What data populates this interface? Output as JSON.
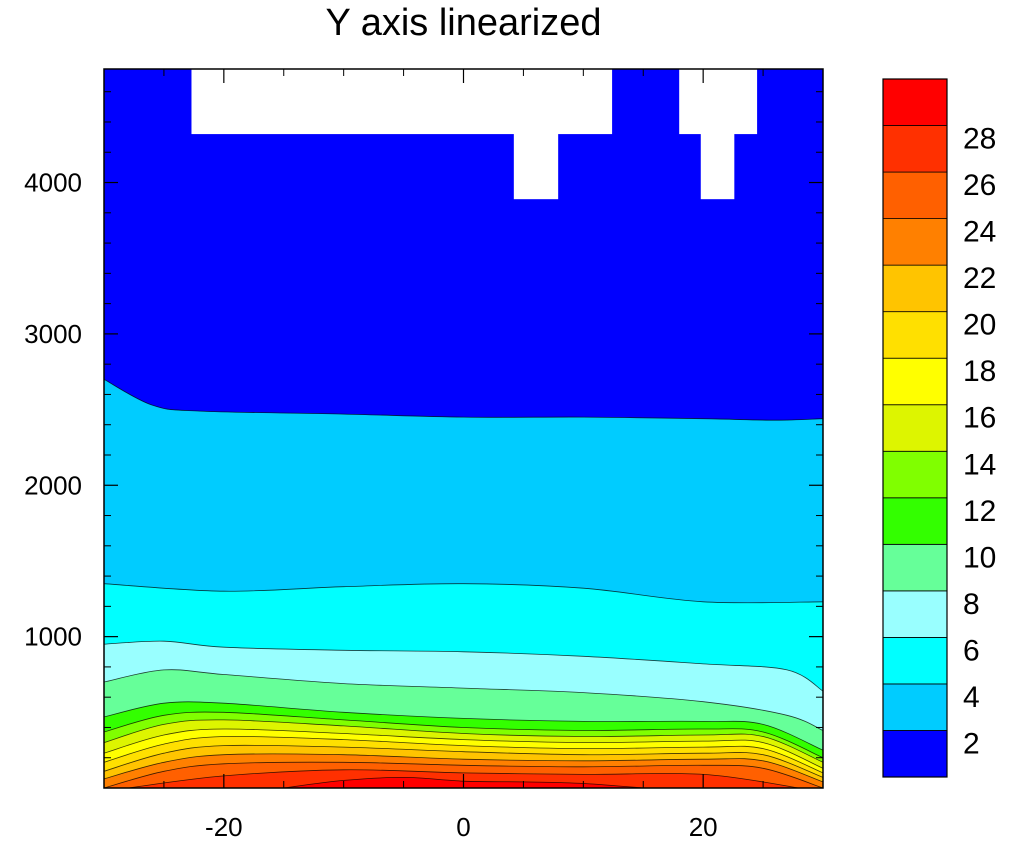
{
  "chart_data": {
    "type": "heatmap",
    "title": "Y axis linearized",
    "xlabel": "",
    "ylabel": "",
    "xlim": [
      -30,
      30
    ],
    "ylim": [
      0,
      4750
    ],
    "x_ticks": [
      -20,
      0,
      20
    ],
    "x_tick_labels": [
      "-20",
      "0",
      "20"
    ],
    "y_ticks": [
      1000,
      2000,
      3000,
      4000
    ],
    "y_tick_labels": [
      "1000",
      "2000",
      "3000",
      "4000"
    ],
    "missing_color": "#ffffff",
    "colorbar": {
      "position": "right",
      "levels": [
        2,
        4,
        6,
        8,
        10,
        12,
        14,
        16,
        18,
        20,
        22,
        24,
        26,
        28
      ],
      "labels": [
        "2",
        "4",
        "6",
        "8",
        "10",
        "12",
        "14",
        "16",
        "18",
        "20",
        "22",
        "24",
        "26",
        "28"
      ],
      "colors": [
        "#0000ff",
        "#00ccff",
        "#00ffff",
        "#99ffff",
        "#66ff99",
        "#33ff00",
        "#80ff00",
        "#ddf500",
        "#ffff00",
        "#ffe000",
        "#ffc400",
        "#ff8000",
        "#ff6000",
        "#ff3000",
        "#ff0000"
      ]
    },
    "contours": [
      {
        "level": 2,
        "x": [
          -30,
          -26,
          -22,
          -10,
          0,
          10,
          20,
          26,
          30
        ],
        "y": [
          2700,
          2530,
          2490,
          2470,
          2450,
          2450,
          2440,
          2430,
          2440
        ]
      },
      {
        "level": 4,
        "x": [
          -30,
          -20,
          -10,
          0,
          10,
          20,
          30
        ],
        "y": [
          1350,
          1300,
          1330,
          1350,
          1320,
          1230,
          1230
        ]
      },
      {
        "level": 6,
        "x": [
          -30,
          -25,
          -20,
          -10,
          0,
          10,
          20,
          27,
          30
        ],
        "y": [
          950,
          970,
          930,
          910,
          900,
          870,
          820,
          780,
          640
        ]
      },
      {
        "level": 8,
        "x": [
          -30,
          -25,
          -20,
          -10,
          0,
          10,
          20,
          27,
          30
        ],
        "y": [
          700,
          780,
          750,
          690,
          660,
          630,
          570,
          480,
          380
        ]
      },
      {
        "level": 10,
        "x": [
          -30,
          -25,
          -20,
          -10,
          0,
          10,
          20,
          25,
          30
        ],
        "y": [
          470,
          560,
          560,
          500,
          460,
          440,
          440,
          420,
          250
        ]
      },
      {
        "level": 12,
        "x": [
          -30,
          -25,
          -20,
          -10,
          0,
          10,
          20,
          25,
          30
        ],
        "y": [
          370,
          480,
          500,
          450,
          400,
          380,
          390,
          370,
          200
        ]
      },
      {
        "level": 14,
        "x": [
          -30,
          -25,
          -20,
          -10,
          0,
          10,
          20,
          25,
          30
        ],
        "y": [
          300,
          420,
          450,
          410,
          360,
          340,
          350,
          340,
          170
        ]
      },
      {
        "level": 16,
        "x": [
          -30,
          -25,
          -20,
          -10,
          0,
          10,
          20,
          25,
          30
        ],
        "y": [
          230,
          350,
          390,
          360,
          320,
          300,
          310,
          300,
          130
        ]
      },
      {
        "level": 18,
        "x": [
          -30,
          -25,
          -20,
          -10,
          0,
          10,
          20,
          25,
          30
        ],
        "y": [
          170,
          290,
          340,
          320,
          280,
          260,
          270,
          260,
          100
        ]
      },
      {
        "level": 20,
        "x": [
          -30,
          -25,
          -20,
          -10,
          0,
          10,
          20,
          25,
          30
        ],
        "y": [
          110,
          230,
          280,
          270,
          240,
          220,
          230,
          220,
          70
        ]
      },
      {
        "level": 22,
        "x": [
          -30,
          -25,
          -20,
          -10,
          0,
          10,
          20,
          25,
          30
        ],
        "y": [
          60,
          170,
          220,
          220,
          190,
          180,
          190,
          180,
          40
        ]
      },
      {
        "level": 24,
        "x": [
          -30,
          -25,
          -20,
          -10,
          0,
          10,
          20,
          25,
          30
        ],
        "y": [
          0,
          110,
          160,
          170,
          150,
          140,
          150,
          130,
          0
        ]
      },
      {
        "level": 26,
        "x": [
          -28,
          -20,
          -10,
          0,
          10,
          20,
          28
        ],
        "y": [
          0,
          80,
          120,
          100,
          90,
          90,
          0
        ]
      },
      {
        "level": 28,
        "x": [
          -15,
          -10,
          -5,
          0,
          5,
          10,
          15
        ],
        "y": [
          0,
          50,
          70,
          45,
          40,
          30,
          0
        ]
      }
    ],
    "missing_regions": [
      {
        "x": [
          -22.7,
          12.4
        ],
        "y": [
          4320,
          4750
        ]
      },
      {
        "x": [
          4.2,
          7.9
        ],
        "y": [
          3890,
          4320
        ]
      },
      {
        "x": [
          18.0,
          24.5
        ],
        "y": [
          4320,
          4750
        ]
      },
      {
        "x": [
          19.8,
          22.6
        ],
        "y": [
          3890,
          4320
        ]
      }
    ]
  }
}
